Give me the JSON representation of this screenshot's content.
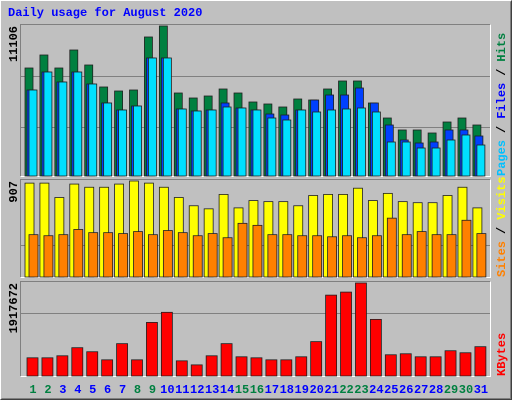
{
  "chart_data": [
    {
      "type": "bar",
      "title": "Daily usage for August 2020",
      "ylim": [
        0,
        11106
      ],
      "yticks": [
        11106
      ],
      "legend_separator": "/",
      "series": [
        {
          "name": "Hits",
          "color": "#008040",
          "label_color": "#008040",
          "values": [
            7996,
            8959,
            7996,
            9329,
            8218,
            6590,
            6293,
            6367,
            10292,
            11106,
            6145,
            5775,
            5923,
            6441,
            6145,
            5479,
            5331,
            5109,
            5701,
            5627,
            6441,
            7034,
            7034,
            5405,
            4294,
            3406,
            3406,
            3184,
            3998,
            4294,
            3776
          ]
        },
        {
          "name": "Files",
          "color": "#0040ff",
          "label_color": "#0000ff",
          "values": [
            6367,
            7700,
            6960,
            7700,
            6812,
            5405,
            4887,
            5183,
            8737,
            8737,
            4961,
            4813,
            4887,
            5405,
            5035,
            4887,
            4590,
            4516,
            4887,
            5627,
            5997,
            5997,
            6516,
            5405,
            3776,
            2665,
            2443,
            2517,
            3406,
            3406,
            2962
          ]
        },
        {
          "name": "Pages",
          "color": "#00e0ff",
          "label_color": "#00c0ff",
          "values": [
            6367,
            7700,
            6960,
            7700,
            6812,
            5405,
            4887,
            5183,
            8737,
            8737,
            4961,
            4813,
            4887,
            5109,
            5035,
            4887,
            4294,
            4146,
            4887,
            4739,
            4887,
            4961,
            5035,
            4739,
            2517,
            2517,
            2073,
            2073,
            2665,
            3036,
            2295
          ]
        }
      ]
    },
    {
      "type": "bar",
      "ylim": [
        0,
        907
      ],
      "yticks": [
        907
      ],
      "legend_separator": "/",
      "series": [
        {
          "name": "Visits",
          "color": "#ffff00",
          "label_color": "#ffff00",
          "values": [
            887,
            887,
            751,
            878,
            848,
            848,
            878,
            907,
            887,
            848,
            751,
            673,
            644,
            780,
            653,
            722,
            712,
            712,
            673,
            770,
            780,
            780,
            839,
            722,
            790,
            712,
            702,
            702,
            770,
            848,
            653
          ]
        },
        {
          "name": "Sites",
          "color": "#ff8000",
          "label_color": "#ff8000",
          "values": [
            400,
            390,
            400,
            449,
            419,
            419,
            410,
            429,
            400,
            439,
            419,
            390,
            410,
            371,
            507,
            488,
            400,
            400,
            390,
            390,
            380,
            390,
            371,
            390,
            556,
            400,
            429,
            400,
            400,
            536,
            410
          ]
        }
      ]
    },
    {
      "type": "bar",
      "ylim": [
        0,
        1917672
      ],
      "yticks": [
        1917672
      ],
      "categories": [
        "1",
        "2",
        "3",
        "4",
        "5",
        "6",
        "7",
        "8",
        "9",
        "10",
        "11",
        "12",
        "13",
        "14",
        "15",
        "16",
        "17",
        "18",
        "19",
        "20",
        "21",
        "22",
        "23",
        "24",
        "25",
        "26",
        "27",
        "28",
        "29",
        "30",
        "31"
      ],
      "label_colors": [
        "#008040",
        "#008040",
        "#0000ff",
        "#0000ff",
        "#0000ff",
        "#0000ff",
        "#0000ff",
        "#008040",
        "#008040",
        "#0000ff",
        "#0000ff",
        "#0000ff",
        "#0000ff",
        "#0000ff",
        "#008040",
        "#008040",
        "#0000ff",
        "#0000ff",
        "#0000ff",
        "#0000ff",
        "#0000ff",
        "#008040",
        "#008040",
        "#0000ff",
        "#0000ff",
        "#0000ff",
        "#0000ff",
        "#0000ff",
        "#008040",
        "#008040",
        "#0000ff"
      ],
      "series": [
        {
          "name": "KBytes",
          "color": "#ff0000",
          "label_color": "#ff0000",
          "values": [
            375192,
            375192,
            416880,
            583632,
            500256,
            333504,
            667008,
            333504,
            1104732,
            1313172,
            312660,
            229284,
            416880,
            667008,
            396036,
            375192,
            333504,
            333504,
            396036,
            708696,
            1667520,
            1730052,
            1917672,
            1167264,
            437724,
            458568,
            396036,
            396036,
            521100,
            479412,
            604476
          ]
        }
      ]
    }
  ]
}
